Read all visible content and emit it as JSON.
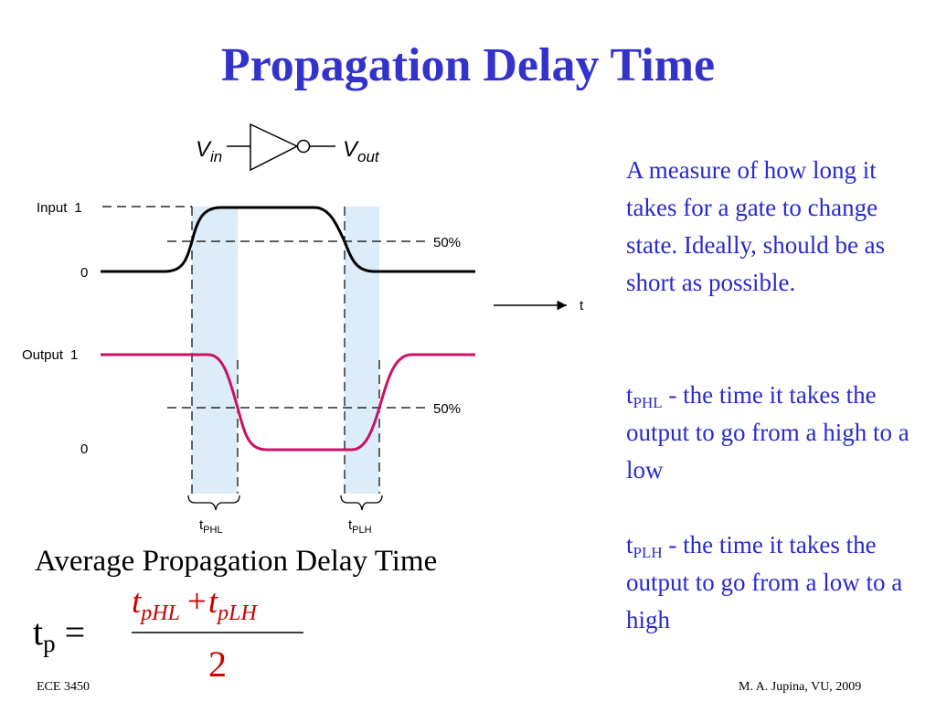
{
  "slide": {
    "title": "Propagation Delay Time",
    "footer_left": "ECE 3450",
    "footer_right": "M. A. Jupina, VU, 2009"
  },
  "inverter": {
    "in_main": "V",
    "in_sub": "in",
    "out_main": "V",
    "out_sub": "out"
  },
  "diagram": {
    "input_label": "Input",
    "output_label": "Output",
    "level_1": "1",
    "level_0": "0",
    "fifty_label": "50%",
    "time_axis_label": "t",
    "t_phl_main": "t",
    "t_phl_sub": "PHL",
    "t_plh_main": "t",
    "t_plh_sub": "PLH"
  },
  "description": {
    "intro": "A measure of how long it takes for a gate to change state. Ideally, should be as short as possible.",
    "phl_main": "t",
    "phl_sub": "PHL",
    "phl_text": " - the time it takes the output to go from a high to a low",
    "plh_main": "t",
    "plh_sub": "PLH",
    "plh_text": " - the time it takes the output to go from a low to a high"
  },
  "formula": {
    "heading": "Average Propagation Delay Time",
    "lhs_main": "t",
    "lhs_sub": "p",
    "equals": "=",
    "num_t1": "t",
    "num_sub1": "pHL",
    "plus": "+",
    "num_t2": "t",
    "num_sub2": "pLH",
    "denominator": "2"
  },
  "colors": {
    "title": "#3333cc",
    "description_text": "#2a2acc",
    "input_waveform": "#000000",
    "output_waveform": "#cc1166",
    "delay_band": "#dcecf8",
    "formula_red": "#cc0000"
  }
}
